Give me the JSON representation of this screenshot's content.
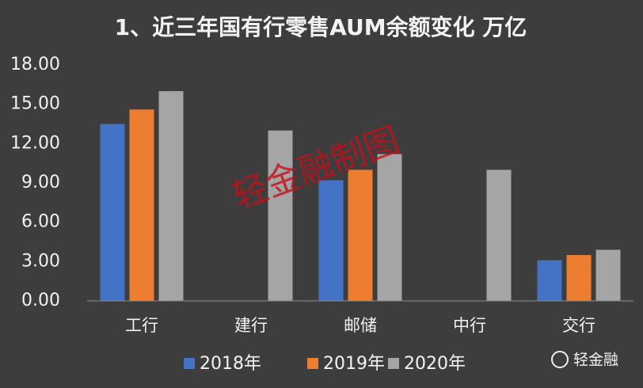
{
  "chart_data": {
    "type": "bar",
    "title": "1、近三年国有行零售AUM余额变化 万亿",
    "categories": [
      "工行",
      "建行",
      "邮储",
      "中行",
      "交行"
    ],
    "series": [
      {
        "name": "2018年",
        "color": "#4472c4",
        "values": [
          13.5,
          null,
          9.2,
          null,
          3.1
        ]
      },
      {
        "name": "2019年",
        "color": "#ed7d31",
        "values": [
          14.6,
          null,
          10.0,
          null,
          3.5
        ]
      },
      {
        "name": "2020年",
        "color": "#a5a5a5",
        "values": [
          16.0,
          13.0,
          11.2,
          10.0,
          3.9
        ]
      }
    ],
    "ylim": [
      0,
      18
    ],
    "yticks": [
      {
        "value": 0,
        "label": "0.00"
      },
      {
        "value": 3,
        "label": "3.00"
      },
      {
        "value": 6,
        "label": "6.00"
      },
      {
        "value": 9,
        "label": "9.00"
      },
      {
        "value": 12,
        "label": "12.00"
      },
      {
        "value": 15,
        "label": "15.00"
      },
      {
        "value": 18,
        "label": "18.00"
      }
    ],
    "grid": false,
    "legend": "bottom",
    "annotations": [
      "轻金融制图",
      "轻金融"
    ]
  }
}
